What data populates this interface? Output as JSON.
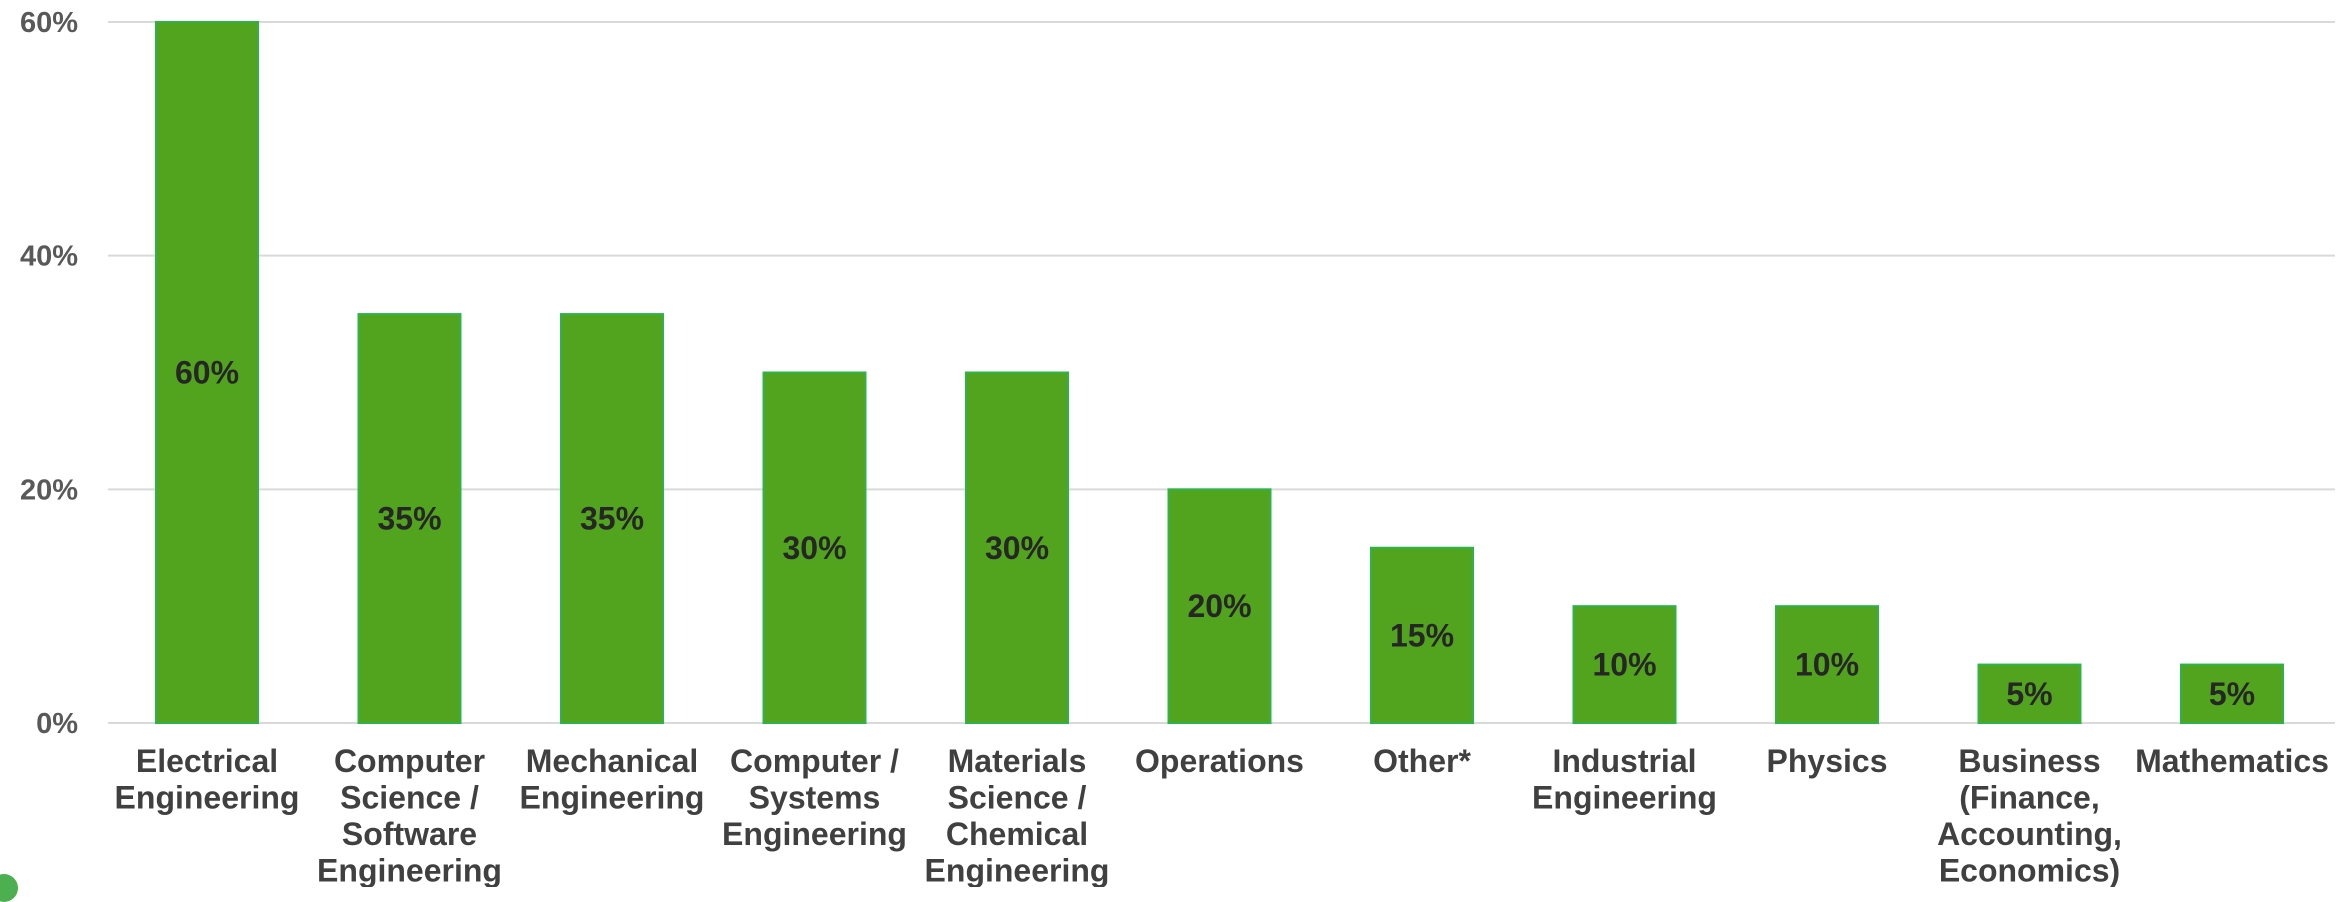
{
  "chart_data": {
    "type": "bar",
    "categories": [
      "Electrical Engineering",
      "Computer Science / Software Engineering",
      "Mechanical Engineering",
      "Computer / Systems Engineering",
      "Materials Science / Chemical Engineering",
      "Operations",
      "Other*",
      "Industrial Engineering",
      "Physics",
      "Business (Finance, Accounting, Economics)",
      "Mathematics"
    ],
    "category_lines": [
      [
        "Electrical",
        "Engineering"
      ],
      [
        "Computer",
        "Science /",
        "Software",
        "Engineering"
      ],
      [
        "Mechanical",
        "Engineering"
      ],
      [
        "Computer /",
        "Systems",
        "Engineering"
      ],
      [
        "Materials",
        "Science /",
        "Chemical",
        "Engineering"
      ],
      [
        "Operations"
      ],
      [
        "Other*"
      ],
      [
        "Industrial",
        "Engineering"
      ],
      [
        "Physics"
      ],
      [
        "Business",
        "(Finance,",
        "Accounting,",
        "Economics)"
      ],
      [
        "Mathematics"
      ]
    ],
    "values": [
      60,
      35,
      35,
      30,
      30,
      20,
      15,
      10,
      10,
      5,
      5
    ],
    "data_labels": [
      "60%",
      "35%",
      "35%",
      "30%",
      "30%",
      "20%",
      "15%",
      "10%",
      "10%",
      "5%",
      "5%"
    ],
    "y_ticks": [
      0,
      20,
      40,
      60
    ],
    "y_tick_labels": [
      "0%",
      "20%",
      "40%",
      "60%"
    ],
    "ylim": [
      0,
      60
    ],
    "grid": true,
    "legend": "none",
    "title": "",
    "xlabel": "",
    "ylabel": "",
    "bar_color": "#52a41f",
    "bar_border_color": "#2db34a"
  }
}
